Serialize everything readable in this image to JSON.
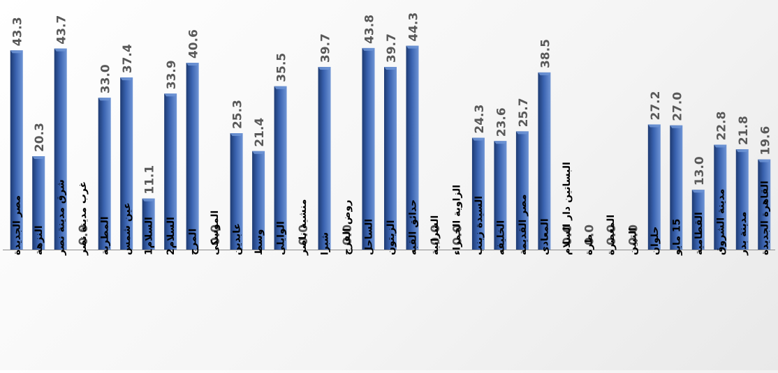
{
  "chart_data": {
    "type": "bar",
    "categories": [
      "مصر الجديدة",
      "النزهة",
      "شرق مدينة نصر",
      "غرب مدينة نصر",
      "المطرية",
      "عين شمس",
      "السلام1",
      "السلام2",
      "المرج",
      "الموسكى",
      "عابدين",
      "وسط",
      "الوايلى",
      "منشية ناصر",
      "شبرا",
      "روض الفرج",
      "الساحل",
      "الزيتون",
      "حدائق القبه",
      "الشرابية",
      "الزاوية الحمراء",
      "السيدة زينب",
      "الخليفه",
      "مصر القديمة",
      "المعادى",
      "البساتين دار السلام",
      "طرة",
      "المعصرة",
      "التبين",
      "حلوان",
      "15 مايو",
      "القطامية",
      "مدينة الشروق",
      "مدينة بدر",
      "القاهرة الجديدة"
    ],
    "values": [
      43.3,
      20.3,
      43.7,
      0.0,
      33.0,
      37.4,
      11.1,
      33.9,
      40.6,
      0.0,
      25.3,
      21.4,
      35.5,
      0.0,
      39.7,
      0.0,
      43.8,
      39.7,
      44.3,
      0.0,
      0.0,
      24.3,
      23.6,
      25.7,
      38.5,
      0.0,
      0.0,
      0.0,
      0.0,
      27.2,
      27.0,
      13.0,
      22.8,
      21.8,
      19.6
    ],
    "value_labels": [
      "43.3",
      "20.3",
      "43.7",
      "0.0",
      "33.0",
      "37.4",
      "11.1",
      "33.9",
      "40.6",
      "0.0",
      "25.3",
      "21.4",
      "35.5",
      "0.0",
      "39.7",
      "0.0",
      "43.8",
      "39.7",
      "44.3",
      "0.0",
      "0.0",
      "24.3",
      "23.6",
      "25.7",
      "38.5",
      "0.0",
      "0.0",
      "0.0",
      "0.0",
      "27.2",
      "27.0",
      "13.0",
      "22.8",
      "21.8",
      "19.6"
    ],
    "ylim": [
      0,
      44.3
    ],
    "grid": false,
    "legend": "none",
    "colors": {
      "bar_dark": "#1d3a72",
      "bar_mid": "#3a63b0",
      "bar_light": "#6f95d6",
      "label_text": "#595959",
      "category_text": "#000000",
      "axis": "#8c8c8c"
    }
  }
}
